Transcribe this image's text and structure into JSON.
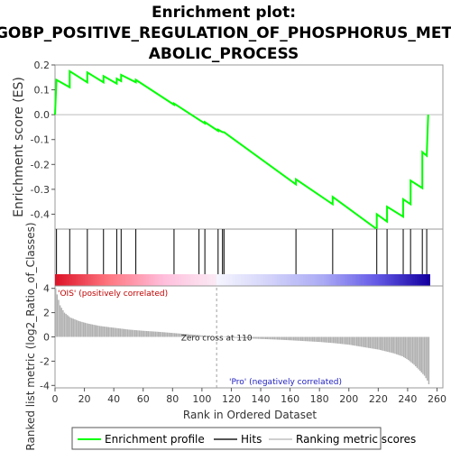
{
  "title_lines": [
    "Enrichment plot:",
    "GOBP_POSITIVE_REGULATION_OF_PHOSPHORUS_MET",
    "ABOLIC_PROCESS"
  ],
  "colors": {
    "es_line": "#00ff00",
    "hits": "#000000",
    "metric_bars": "#b0b0b0",
    "zero_cross_line": "#a0a0a0",
    "pos_label": "#c00000",
    "neg_label": "#2020c0"
  },
  "chart_data": {
    "type": "line",
    "x_axis": {
      "label": "Rank in Ordered Dataset",
      "range": [
        0,
        264
      ],
      "ticks": [
        0,
        20,
        40,
        60,
        80,
        100,
        120,
        140,
        160,
        180,
        200,
        220,
        240,
        260
      ]
    },
    "es_panel": {
      "ylabel": "Enrichment score (ES)",
      "ylim": [
        -0.46,
        0.2
      ],
      "yticks": [
        0.2,
        0.1,
        0.0,
        -0.1,
        -0.2,
        -0.3,
        -0.4
      ],
      "ytick_labels": [
        "0.2",
        "0.1",
        "0.0",
        "-0.1",
        "-0.2",
        "-0.3",
        "-0.4"
      ],
      "series": [
        {
          "name": "Enrichment profile",
          "points": [
            [
              0,
              0.0
            ],
            [
              1,
              0.14
            ],
            [
              10,
              0.11
            ],
            [
              10,
              0.175
            ],
            [
              22,
              0.13
            ],
            [
              22,
              0.17
            ],
            [
              33,
              0.13
            ],
            [
              33,
              0.155
            ],
            [
              42,
              0.125
            ],
            [
              42,
              0.145
            ],
            [
              45,
              0.135
            ],
            [
              45,
              0.16
            ],
            [
              55,
              0.13
            ],
            [
              55,
              0.14
            ],
            [
              81,
              0.04
            ],
            [
              81,
              0.045
            ],
            [
              98,
              -0.02
            ],
            [
              98,
              -0.02
            ],
            [
              102,
              -0.035
            ],
            [
              102,
              -0.03
            ],
            [
              111,
              -0.065
            ],
            [
              111,
              -0.06
            ],
            [
              114,
              -0.07
            ],
            [
              115,
              -0.07
            ],
            [
              164,
              -0.28
            ],
            [
              164,
              -0.26
            ],
            [
              189,
              -0.36
            ],
            [
              189,
              -0.33
            ],
            [
              219,
              -0.46
            ],
            [
              219,
              -0.4
            ],
            [
              226,
              -0.43
            ],
            [
              226,
              -0.37
            ],
            [
              237,
              -0.41
            ],
            [
              237,
              -0.34
            ],
            [
              242,
              -0.36
            ],
            [
              242,
              -0.265
            ],
            [
              250,
              -0.295
            ],
            [
              250,
              -0.15
            ],
            [
              253,
              -0.165
            ],
            [
              254,
              0.0
            ]
          ]
        }
      ]
    },
    "hits": [
      1,
      10,
      22,
      33,
      42,
      45,
      55,
      81,
      98,
      102,
      111,
      114,
      115,
      164,
      189,
      219,
      226,
      237,
      242,
      250,
      253
    ],
    "ranking_panel": {
      "ylabel": "Ranked list metric (log2_Ratio_of_Classes)",
      "ylim": [
        -4.2,
        4.2
      ],
      "yticks": [
        4,
        2,
        0,
        -2,
        -4
      ],
      "ytick_labels": [
        "4",
        "2",
        "0",
        "-2",
        "-4"
      ],
      "zero_cross_rank": 110,
      "zero_cross_label": "Zero cross at 110",
      "pos_label": "'OIS' (positively correlated)",
      "neg_label": "'Pro' (negatively correlated)",
      "metric_points": [
        [
          0,
          4.0
        ],
        [
          1,
          3.5
        ],
        [
          3,
          2.6
        ],
        [
          6,
          2.0
        ],
        [
          10,
          1.6
        ],
        [
          16,
          1.3
        ],
        [
          22,
          1.1
        ],
        [
          30,
          0.9
        ],
        [
          40,
          0.75
        ],
        [
          50,
          0.6
        ],
        [
          60,
          0.5
        ],
        [
          70,
          0.42
        ],
        [
          80,
          0.32
        ],
        [
          90,
          0.22
        ],
        [
          100,
          0.12
        ],
        [
          110,
          0.0
        ],
        [
          120,
          -0.07
        ],
        [
          130,
          -0.12
        ],
        [
          140,
          -0.17
        ],
        [
          150,
          -0.22
        ],
        [
          160,
          -0.28
        ],
        [
          170,
          -0.35
        ],
        [
          180,
          -0.42
        ],
        [
          190,
          -0.52
        ],
        [
          200,
          -0.65
        ],
        [
          210,
          -0.85
        ],
        [
          220,
          -1.05
        ],
        [
          230,
          -1.35
        ],
        [
          236,
          -1.6
        ],
        [
          240,
          -1.9
        ],
        [
          244,
          -2.3
        ],
        [
          248,
          -2.8
        ],
        [
          251,
          -3.2
        ],
        [
          253,
          -3.6
        ],
        [
          254,
          -3.9
        ]
      ]
    },
    "legend": {
      "placement": "bottom",
      "entries": [
        "Enrichment profile",
        "Hits",
        "Ranking metric scores"
      ]
    }
  }
}
